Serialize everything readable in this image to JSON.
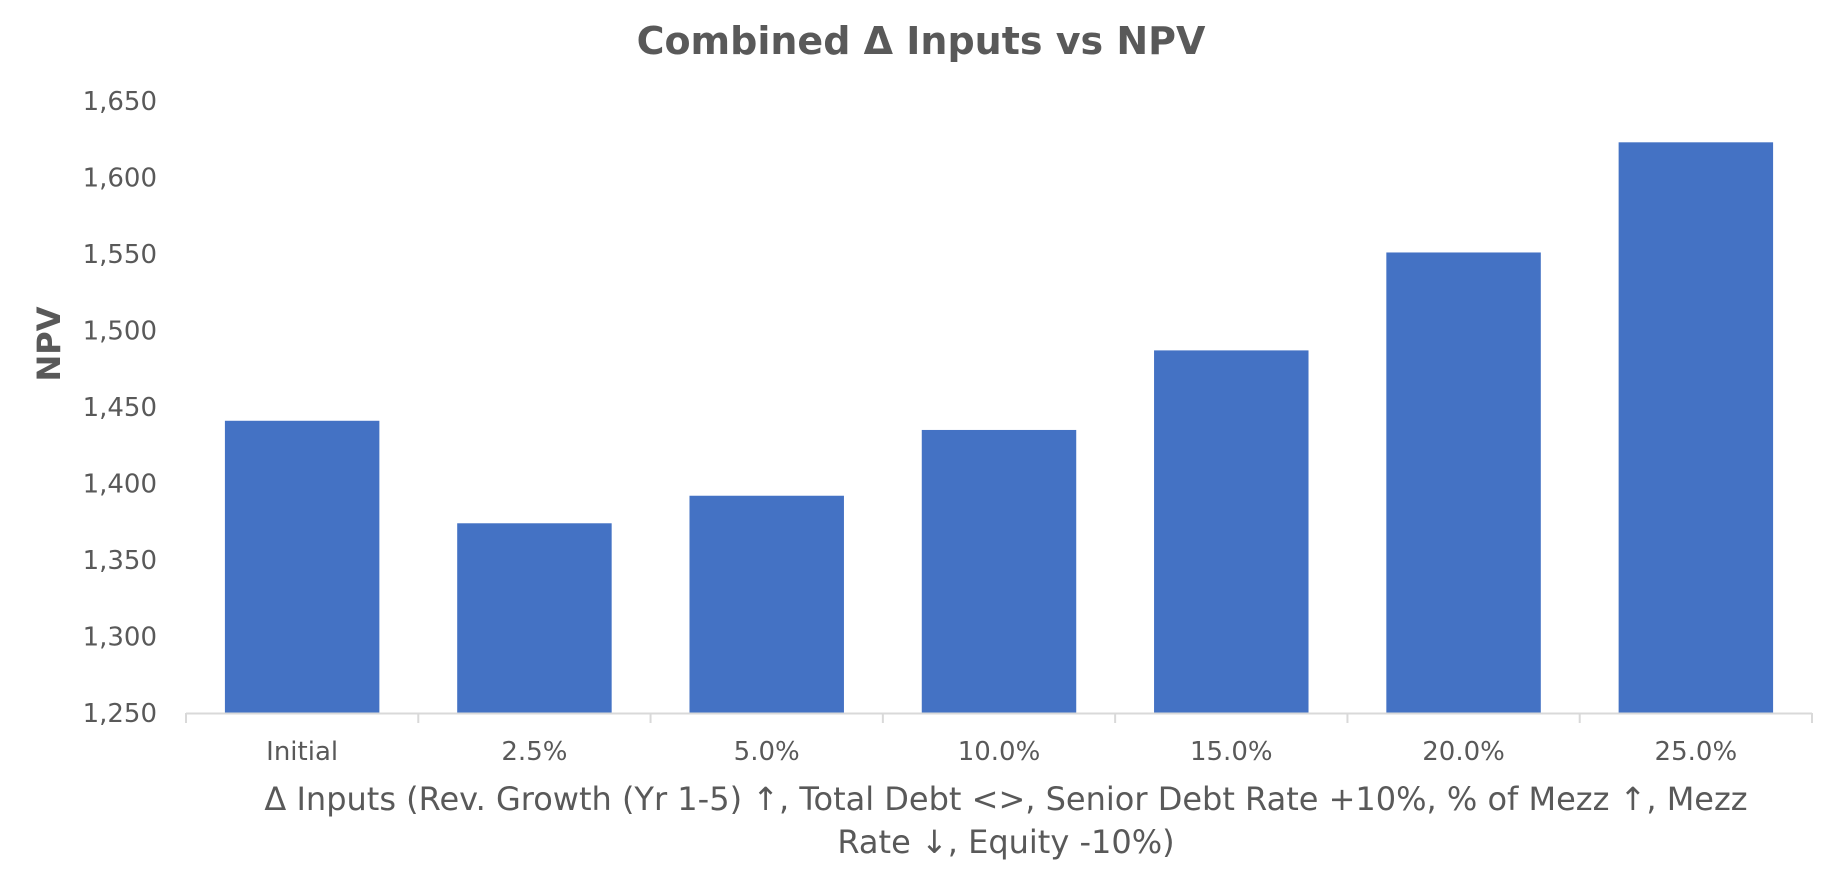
{
  "chart_data": {
    "type": "bar",
    "title": "Combined Δ Inputs vs NPV",
    "xlabel_lines": [
      "Δ Inputs (Rev. Growth (Yr 1-5) ↑, Total Debt <>, Senior Debt Rate +10%, % of Mezz ↑, Mezz",
      "Rate ↓, Equity -10%)"
    ],
    "ylabel": "NPV",
    "categories": [
      "Initial",
      "2.5%",
      "5.0%",
      "10.0%",
      "15.0%",
      "20.0%",
      "25.0%"
    ],
    "values": [
      1441,
      1374,
      1392,
      1435,
      1487,
      1551,
      1623
    ],
    "ylim": [
      1250,
      1650
    ],
    "yticks": [
      1250,
      1300,
      1350,
      1400,
      1450,
      1500,
      1550,
      1600,
      1650
    ],
    "ytick_labels": [
      "1,250",
      "1,300",
      "1,350",
      "1,400",
      "1,450",
      "1,500",
      "1,550",
      "1,600",
      "1,650"
    ],
    "grid": false,
    "legend": "none",
    "colors": {
      "bar": "#4472C4",
      "axis_line": "#D9D9D9",
      "text": "#595959"
    }
  }
}
